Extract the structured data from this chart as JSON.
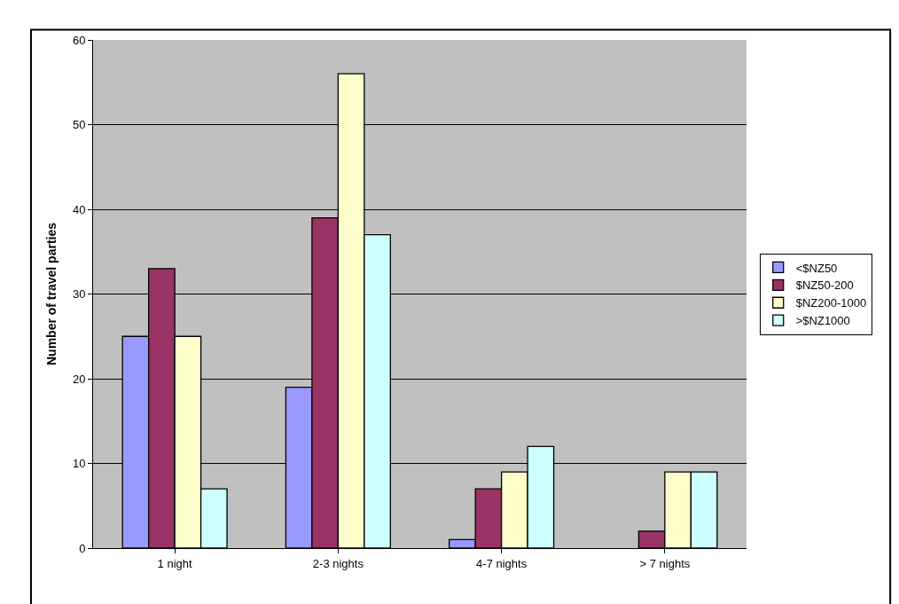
{
  "chart_data": {
    "type": "bar",
    "ylabel": "Number of travel parties",
    "categories": [
      "1 night",
      "2-3 nights",
      "4-7 nights",
      "> 7 nights"
    ],
    "series": [
      {
        "name": "<$NZ50",
        "color": "#9999ff",
        "values": [
          25,
          19,
          1,
          null
        ]
      },
      {
        "name": "$NZ50-200",
        "color": "#993366",
        "values": [
          33,
          39,
          7,
          2
        ]
      },
      {
        "name": "$NZ200-1000",
        "color": "#ffffcc",
        "values": [
          25,
          56,
          9,
          9
        ]
      },
      {
        "name": ">$NZ1000",
        "color": "#ccffff",
        "values": [
          7,
          37,
          12,
          9
        ]
      }
    ],
    "ylim": [
      0,
      60
    ],
    "yticks": [
      0,
      10,
      20,
      30,
      40,
      50,
      60
    ],
    "grid": "y",
    "legend": "right"
  }
}
